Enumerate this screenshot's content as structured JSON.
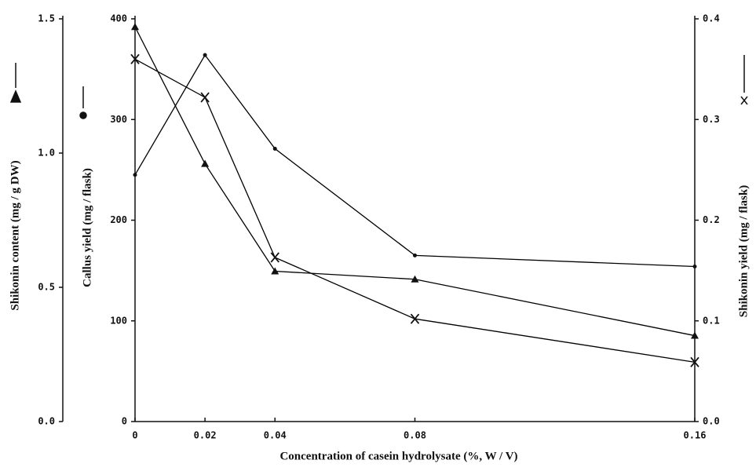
{
  "chart_data": {
    "type": "line",
    "xlabel": "Concentration of casein hydrolysate (%, W / V)",
    "ylabel": "Callus yield (mg / flask)",
    "y2label": "Shikonin yield (mg / flask)",
    "y3label": "Shikonin content (mg / g DW)",
    "x": [
      0,
      0.02,
      0.04,
      0.08,
      0.16
    ],
    "xlim": [
      0,
      0.16
    ],
    "xticks": [
      0,
      0.02,
      0.04,
      0.08,
      0.16
    ],
    "ylim": [
      0,
      400
    ],
    "yticks": [
      0,
      100,
      200,
      300,
      400
    ],
    "y2lim": [
      0,
      0.4
    ],
    "y2ticks": [
      {
        "value": 0,
        "label": "0.0"
      },
      0.1,
      0.2,
      0.3,
      0.4
    ],
    "y3lim": [
      0,
      1.5
    ],
    "y3ticks": [
      {
        "value": 0,
        "label": "0.0"
      },
      0.5,
      {
        "value": 1,
        "label": "1.0"
      },
      1.5
    ],
    "series": [
      {
        "name": "Shikonin content",
        "marker": "triangle",
        "axis": "y3",
        "color": "#000000",
        "values": [
          1.47,
          0.96,
          0.56,
          0.53,
          0.32
        ]
      },
      {
        "name": "Callus yield",
        "marker": "circle",
        "axis": "y",
        "color": "#000000",
        "values": [
          245,
          364,
          271,
          165,
          154
        ]
      },
      {
        "name": "Shikonin yield",
        "marker": "cross",
        "axis": "y2",
        "color": "#000000",
        "values": [
          0.36,
          0.322,
          0.163,
          0.102,
          0.059
        ]
      }
    ]
  }
}
